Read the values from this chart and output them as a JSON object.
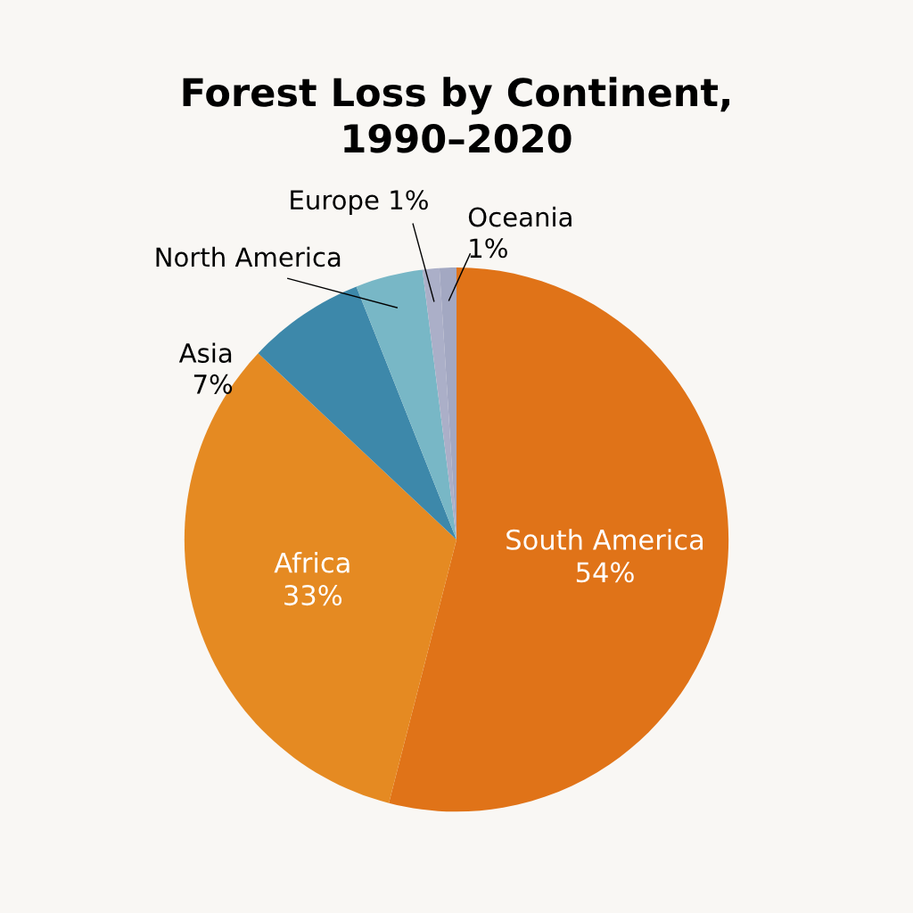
{
  "chart_data": {
    "type": "pie",
    "title": "Forest Loss by Continent,\n1990–2020",
    "categories": [
      "South America",
      "Africa",
      "Asia",
      "North America",
      "Europe",
      "Oceania"
    ],
    "values": [
      54,
      33,
      7,
      4,
      1,
      1
    ],
    "value_labels": [
      "54%",
      "33%",
      "7%",
      null,
      "1%",
      "1%"
    ],
    "colors": [
      "#e07318",
      "#e58a22",
      "#3d88aa",
      "#78b7c6",
      "#abafc8",
      "#a3a8c2"
    ],
    "legend": false
  }
}
